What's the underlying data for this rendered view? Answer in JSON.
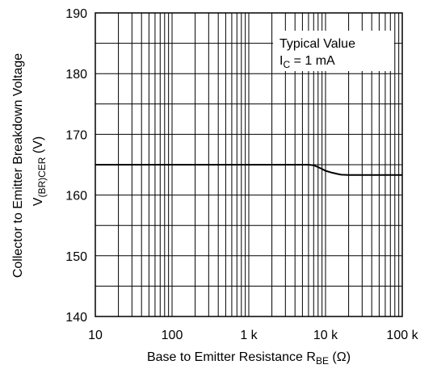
{
  "chart_data": {
    "type": "line",
    "x_scale": "log",
    "xlim": [
      10,
      100000
    ],
    "ylim": [
      140,
      190
    ],
    "grid": true,
    "x_ticks": [
      {
        "value": 10,
        "label": "10"
      },
      {
        "value": 100,
        "label": "100"
      },
      {
        "value": 1000,
        "label": "1 k"
      },
      {
        "value": 10000,
        "label": "10 k"
      },
      {
        "value": 100000,
        "label": "100 k"
      }
    ],
    "y_ticks": [
      {
        "value": 140,
        "label": "140"
      },
      {
        "value": 150,
        "label": "150"
      },
      {
        "value": 160,
        "label": "160"
      },
      {
        "value": 170,
        "label": "170"
      },
      {
        "value": 180,
        "label": "180"
      },
      {
        "value": 190,
        "label": "190"
      }
    ],
    "xlabel": {
      "main": "Base to Emitter Resistance  R",
      "sub": "BE",
      "unit": "  (Ω)"
    },
    "ylabel": {
      "line1": "Collector to Emitter Breakdown Voltage",
      "line2_main": "V",
      "line2_sub": "(BR)CER",
      "line2_unit": "  (V)"
    },
    "annotation": {
      "line1": "Typical Value",
      "line2_main": "I",
      "line2_sub": "C",
      "line2_rest": " = 1 mA"
    },
    "series": [
      {
        "x": [
          10,
          1000,
          5000,
          6000,
          7000,
          8000,
          9000,
          10000,
          12000,
          14000,
          16000,
          20000,
          30000,
          50000,
          100000
        ],
        "y": [
          165,
          165,
          165,
          165,
          164.9,
          164.6,
          164.3,
          164.0,
          163.7,
          163.5,
          163.35,
          163.3,
          163.3,
          163.3,
          163.3
        ]
      }
    ]
  }
}
